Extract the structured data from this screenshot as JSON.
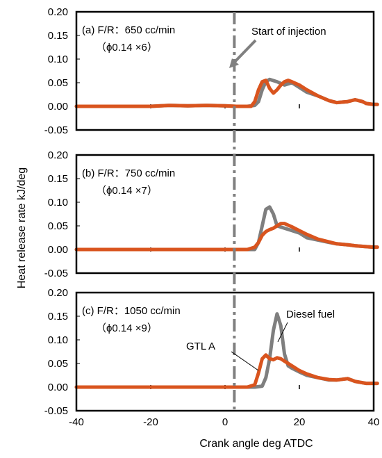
{
  "chart_data": {
    "type": "line",
    "y_axis_label": "Heat release rate   kJ/deg",
    "x_axis_label": "Crank angle   deg ATDC",
    "xlim": [
      -40,
      40
    ],
    "x_ticks": [
      "-40",
      "-20",
      "0",
      "20",
      "40"
    ],
    "ylim": [
      -0.05,
      0.2
    ],
    "y_ticks": [
      "-0.05",
      "0.00",
      "0.05",
      "0.10",
      "0.15",
      "0.20"
    ],
    "injection_line_x": 2.5,
    "colors": {
      "GTL A": "#d9541e",
      "Diesel fuel": "#7f7f7f",
      "injection_line": "#808080"
    },
    "panels": [
      {
        "label_line1": "(a) F/R：650 cc/min",
        "label_line2": "（ϕ0.14 ×6）",
        "annotation": "Start of injection",
        "series": [
          {
            "name": "Diesel fuel",
            "x": [
              -40,
              -20,
              -15,
              -10,
              -5,
              0,
              3,
              6,
              8,
              9,
              10,
              11,
              12,
              14,
              16,
              18,
              20,
              22,
              25,
              28,
              30,
              33,
              35,
              36,
              37,
              38,
              40,
              41
            ],
            "y": [
              0,
              0,
              0.002,
              0.001,
              0.002,
              0.001,
              0.0,
              0.0,
              0.002,
              0.01,
              0.035,
              0.052,
              0.057,
              0.052,
              0.045,
              0.05,
              0.04,
              0.03,
              0.022,
              0.012,
              0.008,
              0.01,
              0.014,
              0.012,
              0.01,
              0.006,
              0.004,
              0.004
            ]
          },
          {
            "name": "GTL A",
            "x": [
              -40,
              -20,
              -15,
              -10,
              -5,
              0,
              3,
              6,
              7,
              8,
              9,
              10,
              11,
              12,
              13,
              14,
              15,
              16,
              17,
              18,
              20,
              22,
              25,
              28,
              30,
              33,
              35,
              36,
              37,
              38,
              40,
              41
            ],
            "y": [
              0,
              0,
              0.002,
              0.001,
              0.002,
              0.001,
              0.0,
              0.0,
              0.0,
              0.01,
              0.035,
              0.052,
              0.055,
              0.038,
              0.028,
              0.035,
              0.045,
              0.052,
              0.055,
              0.052,
              0.045,
              0.035,
              0.022,
              0.012,
              0.008,
              0.01,
              0.014,
              0.012,
              0.01,
              0.006,
              0.004,
              0.004
            ]
          }
        ]
      },
      {
        "label_line1": "(b) F/R：750 cc/min",
        "label_line2": "（ϕ0.14 ×7）",
        "series": [
          {
            "name": "Diesel fuel",
            "x": [
              -40,
              -20,
              -10,
              0,
              3,
              6,
              8,
              9,
              10,
              11,
              12,
              13,
              14,
              16,
              18,
              20,
              22,
              25,
              28,
              30,
              33,
              35,
              38,
              40,
              41
            ],
            "y": [
              0,
              0,
              0,
              0,
              0,
              0,
              0,
              0.015,
              0.05,
              0.085,
              0.09,
              0.075,
              0.05,
              0.045,
              0.04,
              0.035,
              0.025,
              0.02,
              0.015,
              0.012,
              0.01,
              0.008,
              0.006,
              0.005,
              0.005
            ]
          },
          {
            "name": "GTL A",
            "x": [
              -40,
              -20,
              -10,
              0,
              3,
              6,
              8,
              9,
              10,
              11,
              12,
              13,
              14,
              15,
              16,
              18,
              20,
              22,
              25,
              28,
              30,
              33,
              35,
              38,
              40,
              41
            ],
            "y": [
              0,
              0,
              0,
              0,
              0,
              0,
              0.005,
              0.015,
              0.03,
              0.038,
              0.042,
              0.045,
              0.05,
              0.055,
              0.055,
              0.048,
              0.04,
              0.032,
              0.022,
              0.016,
              0.012,
              0.01,
              0.008,
              0.006,
              0.005,
              0.005
            ]
          }
        ]
      },
      {
        "label_line1": "(c) F/R：1050 cc/min",
        "label_line2": "（ϕ0.14 ×9）",
        "annotation_gtl": "GTL A",
        "annotation_diesel": "Diesel fuel",
        "series": [
          {
            "name": "Diesel fuel",
            "x": [
              -40,
              -20,
              -10,
              0,
              3,
              6,
              8,
              10,
              11,
              12,
              13,
              14,
              15,
              16,
              17,
              18,
              20,
              22,
              25,
              28,
              30,
              33,
              35,
              38,
              40,
              41
            ],
            "y": [
              0,
              0,
              0,
              0,
              0,
              0,
              0,
              0.002,
              0.02,
              0.06,
              0.12,
              0.155,
              0.13,
              0.07,
              0.045,
              0.04,
              0.032,
              0.025,
              0.02,
              0.015,
              0.015,
              0.018,
              0.012,
              0.008,
              0.008,
              0.008
            ]
          },
          {
            "name": "GTL A",
            "x": [
              -40,
              -20,
              -10,
              0,
              3,
              6,
              8,
              9,
              10,
              11,
              12,
              13,
              14,
              15,
              16,
              18,
              20,
              22,
              25,
              28,
              30,
              33,
              35,
              38,
              40,
              41
            ],
            "y": [
              0,
              0,
              0,
              0,
              0,
              0,
              0.005,
              0.03,
              0.06,
              0.068,
              0.06,
              0.058,
              0.062,
              0.06,
              0.055,
              0.045,
              0.035,
              0.028,
              0.02,
              0.016,
              0.015,
              0.018,
              0.012,
              0.008,
              0.008,
              0.008
            ]
          }
        ]
      }
    ]
  }
}
